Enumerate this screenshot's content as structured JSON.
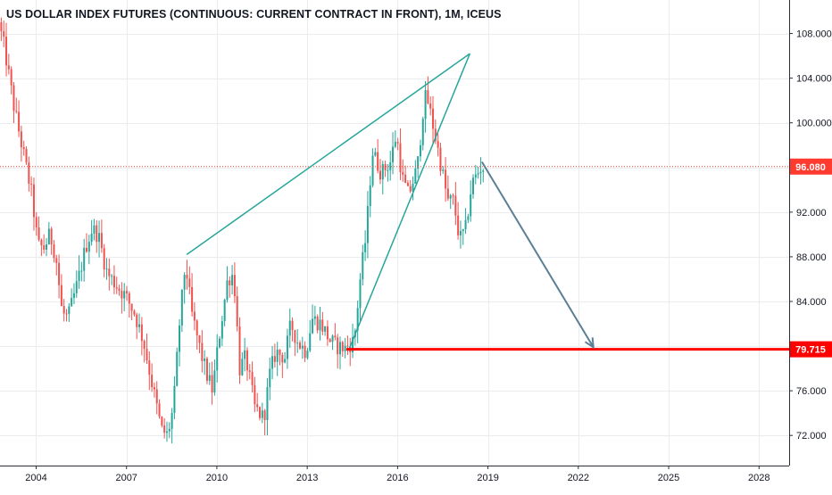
{
  "chart_data": {
    "type": "candlestick",
    "title": "US DOLLAR INDEX FUTURES (CONTINUOUS: CURRENT CONTRACT IN FRONT), 1M, ICEUS",
    "xlabel": "",
    "ylabel": "",
    "x_range": [
      2002.8,
      2029.0
    ],
    "ylim": [
      69.3,
      111.0
    ],
    "x_ticks": [
      {
        "label": "2004",
        "value": 2004
      },
      {
        "label": "2007",
        "value": 2007
      },
      {
        "label": "2010",
        "value": 2010
      },
      {
        "label": "2013",
        "value": 2013
      },
      {
        "label": "2016",
        "value": 2016
      },
      {
        "label": "2019",
        "value": 2019
      },
      {
        "label": "2022",
        "value": 2022
      },
      {
        "label": "2025",
        "value": 2025
      },
      {
        "label": "2028",
        "value": 2028
      }
    ],
    "y_ticks": [
      {
        "label": "72.000",
        "value": 72
      },
      {
        "label": "76.000",
        "value": 76
      },
      {
        "label": "80.000",
        "value": 80
      },
      {
        "label": "84.000",
        "value": 84
      },
      {
        "label": "88.000",
        "value": 88
      },
      {
        "label": "92.000",
        "value": 92
      },
      {
        "label": "96.000",
        "value": 96
      },
      {
        "label": "100.000",
        "value": 100
      },
      {
        "label": "104.000",
        "value": 104
      },
      {
        "label": "108.000",
        "value": 108
      }
    ],
    "grid": true,
    "price_path": [
      [
        2002.8,
        109.0
      ],
      [
        2003.0,
        106.5
      ],
      [
        2003.3,
        101.5
      ],
      [
        2003.6,
        97.5
      ],
      [
        2003.9,
        93.5
      ],
      [
        2004.1,
        89.0
      ],
      [
        2004.3,
        88.8
      ],
      [
        2004.5,
        90.0
      ],
      [
        2004.7,
        88.0
      ],
      [
        2004.9,
        83.0
      ],
      [
        2005.1,
        82.5
      ],
      [
        2005.4,
        85.5
      ],
      [
        2005.7,
        89.0
      ],
      [
        2005.9,
        90.5
      ],
      [
        2006.1,
        90.0
      ],
      [
        2006.4,
        86.5
      ],
      [
        2006.7,
        85.5
      ],
      [
        2007.0,
        84.5
      ],
      [
        2007.3,
        83.0
      ],
      [
        2007.6,
        80.5
      ],
      [
        2007.9,
        76.5
      ],
      [
        2008.2,
        72.5
      ],
      [
        2008.4,
        72.0
      ],
      [
        2008.6,
        74.5
      ],
      [
        2008.8,
        82.0
      ],
      [
        2009.0,
        87.5
      ],
      [
        2009.2,
        83.0
      ],
      [
        2009.5,
        79.5
      ],
      [
        2009.7,
        77.5
      ],
      [
        2009.9,
        76.0
      ],
      [
        2010.1,
        80.5
      ],
      [
        2010.4,
        86.0
      ],
      [
        2010.6,
        86.5
      ],
      [
        2010.8,
        78.0
      ],
      [
        2011.0,
        79.0
      ],
      [
        2011.3,
        74.5
      ],
      [
        2011.6,
        73.5
      ],
      [
        2011.8,
        77.5
      ],
      [
        2012.0,
        79.5
      ],
      [
        2012.3,
        79.0
      ],
      [
        2012.5,
        82.0
      ],
      [
        2012.7,
        80.5
      ],
      [
        2013.0,
        79.5
      ],
      [
        2013.2,
        82.5
      ],
      [
        2013.5,
        82.0
      ],
      [
        2013.8,
        80.5
      ],
      [
        2014.0,
        80.0
      ],
      [
        2014.3,
        79.8
      ],
      [
        2014.6,
        80.5
      ],
      [
        2014.8,
        86.0
      ],
      [
        2015.0,
        90.0
      ],
      [
        2015.2,
        97.5
      ],
      [
        2015.5,
        95.5
      ],
      [
        2015.8,
        96.5
      ],
      [
        2016.0,
        99.0
      ],
      [
        2016.2,
        95.0
      ],
      [
        2016.4,
        93.5
      ],
      [
        2016.7,
        96.0
      ],
      [
        2016.9,
        101.5
      ],
      [
        2017.0,
        102.5
      ],
      [
        2017.2,
        100.0
      ],
      [
        2017.5,
        96.0
      ],
      [
        2017.7,
        93.0
      ],
      [
        2017.9,
        93.0
      ],
      [
        2018.1,
        89.5
      ],
      [
        2018.3,
        90.5
      ],
      [
        2018.5,
        94.5
      ],
      [
        2018.8,
        96.0
      ]
    ],
    "current_price": {
      "value": 96.08,
      "label": "96.080",
      "color": "#ff3b30"
    },
    "target_level": {
      "value": 79.715,
      "label": "79.715",
      "color": "#ff0000"
    },
    "drawings": {
      "upper_line": {
        "from": [
          2009.0,
          88.2
        ],
        "to": [
          2018.4,
          106.2
        ]
      },
      "lower_line": {
        "from": [
          2014.4,
          79.8
        ],
        "to": [
          2018.4,
          106.2
        ]
      },
      "arrow": {
        "from": [
          2018.8,
          96.5
        ],
        "to": [
          2022.5,
          79.9
        ]
      },
      "target_line_start_x": 2014.3
    },
    "colors": {
      "up": "#26a69a",
      "down": "#ef5350",
      "grid": "#eaecef",
      "axis_text": "#131722",
      "channel": "#26a69a",
      "arrow": "#5b7f95"
    }
  }
}
